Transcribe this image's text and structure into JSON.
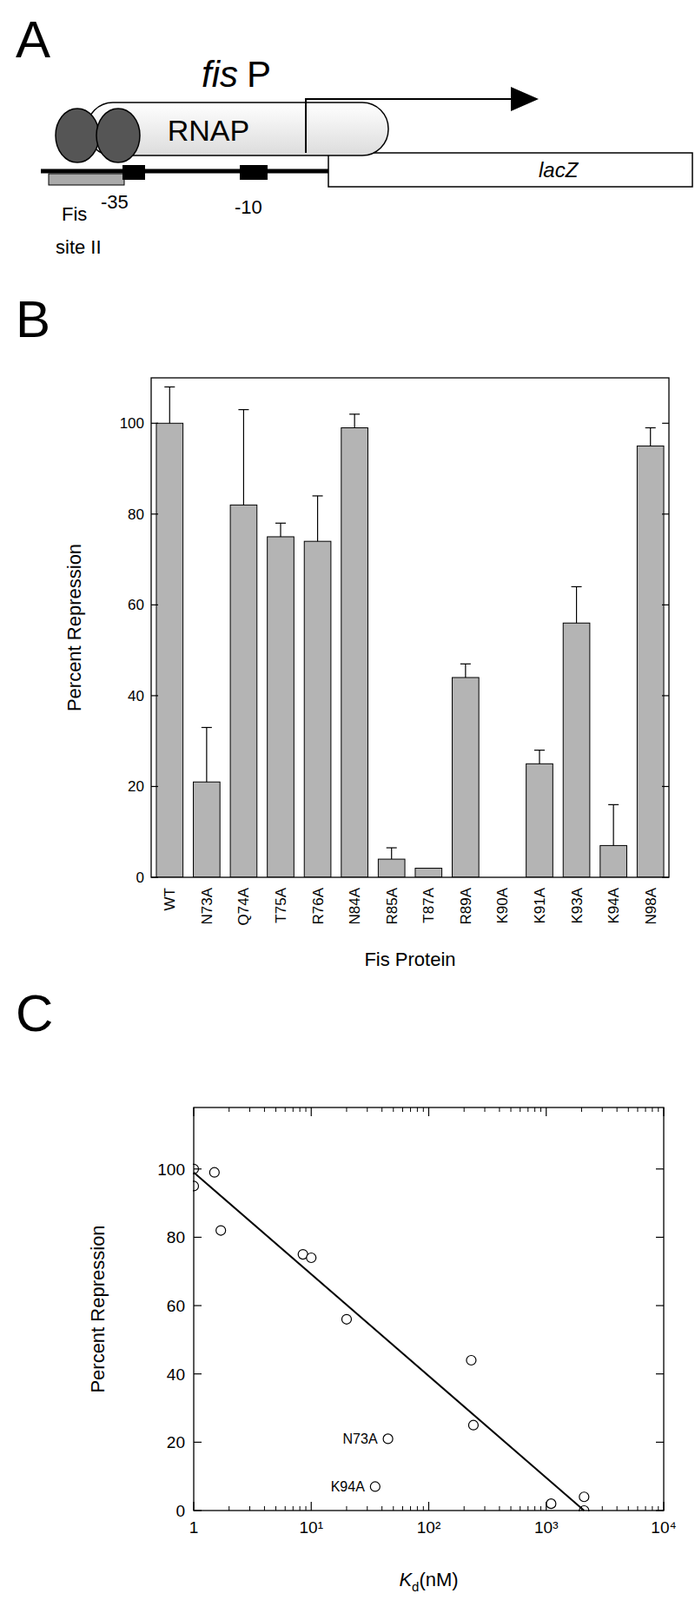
{
  "diagram": {
    "panel": "A",
    "promoter": [
      "fis",
      "P"
    ],
    "polymerase": "RNAP",
    "gene": "lacZ",
    "binding_site": [
      "Fis",
      "site II"
    ],
    "elements": [
      "-35",
      "-10"
    ]
  },
  "chart_data": [
    {
      "type": "bar",
      "panel": "B",
      "y_label": "Percent Repression",
      "x_label": "Fis Protein",
      "categories": [
        "WT",
        "N73A",
        "Q74A",
        "T75A",
        "R76A",
        "N84A",
        "R85A",
        "T87A",
        "R89A",
        "K90A",
        "K91A",
        "K93A",
        "K94A",
        "N98A"
      ],
      "values": [
        100,
        21,
        82,
        75,
        74,
        99,
        4,
        2,
        44,
        0,
        25,
        56,
        7,
        95
      ],
      "errors": [
        8,
        12,
        21,
        3,
        10,
        3,
        2.5,
        0,
        3,
        0,
        3,
        8,
        9,
        4
      ],
      "color": "#b4b4b4",
      "ylim": [
        0,
        110
      ],
      "yticks": [
        0,
        20,
        40,
        60,
        80,
        100
      ]
    },
    {
      "type": "scatter",
      "panel": "C",
      "y_label": "Percent Repression",
      "x_label": "Kd(nM)",
      "log": "x",
      "xlim": [
        1,
        10000
      ],
      "xticks": [
        1,
        {
          "value": 10,
          "label": "10¹"
        },
        {
          "value": 100,
          "label": "10²"
        },
        {
          "value": 1000,
          "label": "10³"
        },
        {
          "value": 10000,
          "label": "10⁴"
        }
      ],
      "ylim": [
        0,
        118
      ],
      "yticks": [
        0,
        20,
        40,
        60,
        80,
        100
      ],
      "series": [
        {
          "type": "scatter",
          "marker": "circle",
          "x": [
            1,
            1,
            1.5,
            1.7,
            8.5,
            10,
            20,
            230,
            240,
            45,
            35,
            1100,
            2100,
            2100
          ],
          "values": [
            100,
            95,
            99,
            82,
            75,
            74,
            56,
            44,
            25,
            21,
            7,
            2,
            4,
            0
          ]
        },
        {
          "type": "line",
          "x": [
            1,
            2100
          ],
          "values": [
            99,
            0
          ]
        }
      ],
      "annotations": [
        {
          "text": "N73A",
          "x": 45,
          "y": 21
        },
        {
          "text": "K94A",
          "x": 35,
          "y": 7
        }
      ]
    }
  ]
}
